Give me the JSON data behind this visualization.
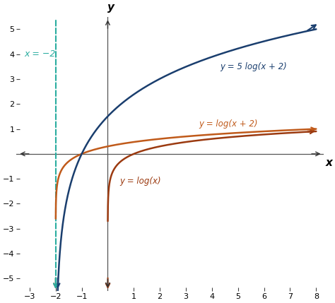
{
  "xlim": [
    -3.5,
    8.3
  ],
  "ylim": [
    -5.5,
    5.5
  ],
  "xticks": [
    -3,
    -2,
    -1,
    1,
    2,
    3,
    4,
    5,
    6,
    7,
    8
  ],
  "yticks": [
    -5,
    -4,
    -3,
    -2,
    -1,
    1,
    2,
    3,
    4,
    5
  ],
  "color_blue": "#1a3e6e",
  "color_orange": "#c05a1a",
  "color_red_orange": "#9b3a10",
  "color_teal": "#2aada0",
  "asymptote_x": -2,
  "label_5log": "y = 5 log(x + 2)",
  "label_logx2": "y = log(x + 2)",
  "label_logx": "y = log(x)",
  "label_asymptote": "x = −2",
  "background_color": "#ffffff",
  "figsize": [
    4.74,
    4.29
  ],
  "dpi": 100
}
